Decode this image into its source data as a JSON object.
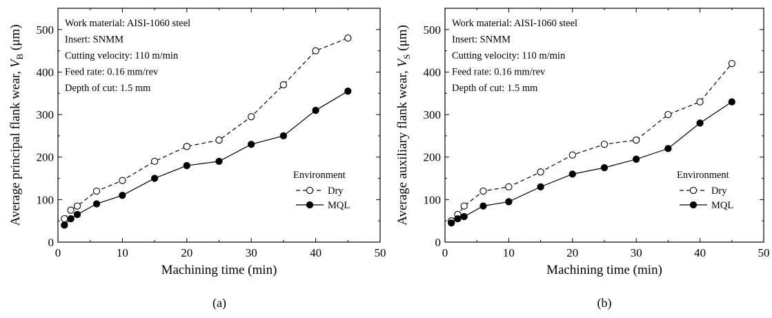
{
  "chart_data": [
    {
      "type": "line",
      "panel_label": "(a)",
      "xlabel": "Machining time (min)",
      "ylabel_prefix": "Average principal flank wear, ",
      "ylabel_var": "V",
      "ylabel_sub": "B",
      "ylabel_suffix": " (μm)",
      "xlim": [
        0,
        50
      ],
      "ylim": [
        0,
        550
      ],
      "xticks": [
        0,
        10,
        20,
        30,
        40,
        50
      ],
      "yticks": [
        0,
        100,
        200,
        300,
        400,
        500
      ],
      "x": [
        1,
        2,
        3,
        6,
        10,
        15,
        20,
        25,
        30,
        35,
        40,
        45
      ],
      "series": [
        {
          "name": "Dry",
          "style": "dashed-open-circle",
          "values": [
            55,
            75,
            85,
            120,
            145,
            190,
            225,
            240,
            295,
            370,
            450,
            480
          ]
        },
        {
          "name": "MQL",
          "style": "solid-filled-circle",
          "values": [
            40,
            55,
            65,
            90,
            110,
            150,
            180,
            190,
            230,
            250,
            310,
            355
          ]
        }
      ],
      "annotations": [
        "Work material: AISI-1060 steel",
        "Insert: SNMM",
        "Cutting velocity: 110 m/min",
        "Feed rate: 0.16 mm/rev",
        "Depth of cut: 1.5 mm"
      ],
      "legend_title": "Environment",
      "legend_placement": "bottom-right",
      "grid": false
    },
    {
      "type": "line",
      "panel_label": "(b)",
      "xlabel": "Machining time (min)",
      "ylabel_prefix": "Average auxiliary flank wear, ",
      "ylabel_var": "V",
      "ylabel_sub": "S",
      "ylabel_suffix": " (μm)",
      "xlim": [
        0,
        50
      ],
      "ylim": [
        0,
        550
      ],
      "xticks": [
        0,
        10,
        20,
        30,
        40,
        50
      ],
      "yticks": [
        0,
        100,
        200,
        300,
        400,
        500
      ],
      "x": [
        1,
        2,
        3,
        6,
        10,
        15,
        20,
        25,
        30,
        35,
        40,
        45
      ],
      "series": [
        {
          "name": "Dry",
          "style": "dashed-open-circle",
          "values": [
            50,
            65,
            85,
            120,
            130,
            165,
            205,
            230,
            240,
            300,
            330,
            420
          ]
        },
        {
          "name": "MQL",
          "style": "solid-filled-circle",
          "values": [
            45,
            55,
            60,
            85,
            95,
            130,
            160,
            175,
            195,
            220,
            280,
            330
          ]
        }
      ],
      "annotations": [
        "Work material: AISI-1060 steel",
        "Insert: SNMM",
        "Cutting velocity: 110 m/min",
        "Feed rate: 0.16 mm/rev",
        "Depth of cut: 1.5 mm"
      ],
      "legend_title": "Environment",
      "legend_placement": "bottom-right",
      "grid": false
    }
  ]
}
